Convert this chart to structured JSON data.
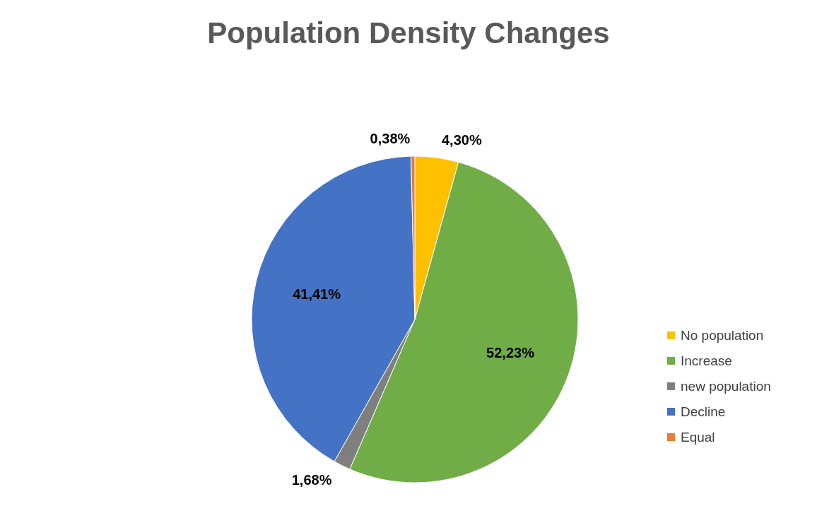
{
  "chart_data": {
    "type": "pie",
    "title": "Population Density Changes",
    "categories": [
      "No population",
      "Increase",
      "new population",
      "Decline",
      "Equal"
    ],
    "values": [
      4.3,
      52.23,
      1.68,
      41.41,
      0.38
    ],
    "colors": [
      "#ffc000",
      "#70ad47",
      "#7f7f7f",
      "#4472c4",
      "#ed7d31"
    ],
    "value_labels": [
      "4,30%",
      "52,23%",
      "1,68%",
      "41,41%",
      "0,38%"
    ],
    "legend": "right"
  }
}
